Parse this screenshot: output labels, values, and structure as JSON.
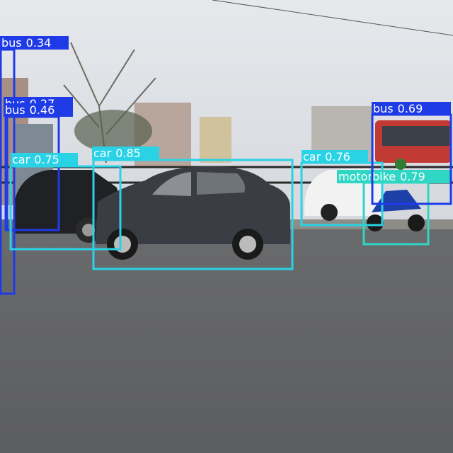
{
  "detections": [
    {
      "class": "bus",
      "score": 0.34,
      "color": "#1f3be8"
    },
    {
      "class": "bus",
      "score": 0.27,
      "color": "#1f3be8"
    },
    {
      "class": "bus",
      "score": 0.46,
      "color": "#1f3be8"
    },
    {
      "class": "car",
      "score": 0.75,
      "color": "#2ad2e6"
    },
    {
      "class": "car",
      "score": 0.85,
      "color": "#2ad2e6"
    },
    {
      "class": "car",
      "score": 0.76,
      "color": "#2ad2e6"
    },
    {
      "class": "motorbike",
      "score": 0.79,
      "color": "#2fd6c4"
    },
    {
      "class": "bus",
      "score": 0.69,
      "color": "#1f3be8"
    }
  ]
}
